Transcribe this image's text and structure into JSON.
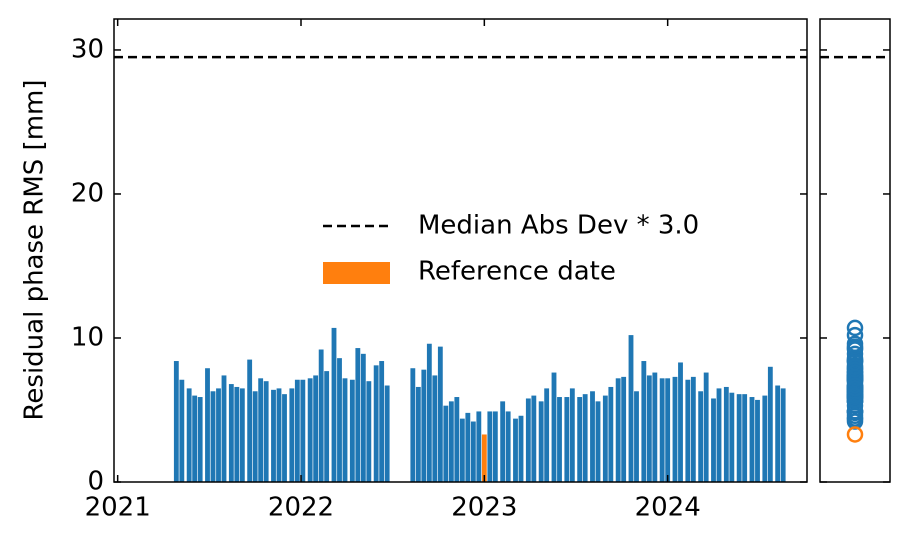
{
  "chart_data": {
    "type": "bar",
    "ylabel": "Residual phase RMS [mm]",
    "xlim": [
      2020.98,
      2024.76
    ],
    "xticks": [
      2021,
      2022,
      2023,
      2024
    ],
    "ylim": [
      0,
      32.15
    ],
    "yticks": [
      0,
      10,
      20,
      30
    ],
    "legend": "center",
    "bars": {
      "color": "#1f77b4",
      "x": [
        2021.32,
        2021.35,
        2021.39,
        2021.42,
        2021.45,
        2021.49,
        2021.52,
        2021.55,
        2021.58,
        2021.62,
        2021.65,
        2021.68,
        2021.72,
        2021.75,
        2021.78,
        2021.81,
        2021.85,
        2021.88,
        2021.91,
        2021.95,
        2021.98,
        2022.01,
        2022.05,
        2022.08,
        2022.11,
        2022.14,
        2022.18,
        2022.21,
        2022.24,
        2022.28,
        2022.31,
        2022.34,
        2022.37,
        2022.41,
        2022.44,
        2022.47,
        2022.61,
        2022.64,
        2022.67,
        2022.7,
        2022.73,
        2022.76,
        2022.79,
        2022.82,
        2022.85,
        2022.88,
        2022.91,
        2022.94,
        2022.97,
        2023.03,
        2023.06,
        2023.1,
        2023.13,
        2023.17,
        2023.2,
        2023.24,
        2023.27,
        2023.31,
        2023.34,
        2023.38,
        2023.41,
        2023.45,
        2023.48,
        2023.52,
        2023.55,
        2023.59,
        2023.62,
        2023.66,
        2023.69,
        2023.73,
        2023.76,
        2023.8,
        2023.83,
        2023.87,
        2023.9,
        2023.93,
        2023.97,
        2024.0,
        2024.04,
        2024.07,
        2024.11,
        2024.14,
        2024.18,
        2024.21,
        2024.25,
        2024.28,
        2024.32,
        2024.35,
        2024.39,
        2024.42,
        2024.46,
        2024.49,
        2024.53,
        2024.56,
        2024.6,
        2024.63
      ],
      "values": [
        8.4,
        7.1,
        6.5,
        6.0,
        5.9,
        7.9,
        6.3,
        6.5,
        7.4,
        6.8,
        6.6,
        6.5,
        8.5,
        6.3,
        7.2,
        7.0,
        6.4,
        6.5,
        6.1,
        6.5,
        7.1,
        7.1,
        7.2,
        7.4,
        9.2,
        7.7,
        10.7,
        8.6,
        7.2,
        7.1,
        9.3,
        8.9,
        7.0,
        8.1,
        8.4,
        6.7,
        7.9,
        6.6,
        7.8,
        9.6,
        7.4,
        9.4,
        5.3,
        5.6,
        5.9,
        4.4,
        4.8,
        4.2,
        4.9,
        4.9,
        4.9,
        5.6,
        4.9,
        4.4,
        4.6,
        5.8,
        6.0,
        5.6,
        6.5,
        7.6,
        5.9,
        5.9,
        6.5,
        5.9,
        6.1,
        6.3,
        5.6,
        6.0,
        6.6,
        7.2,
        7.3,
        10.2,
        6.3,
        8.4,
        7.4,
        7.6,
        7.2,
        7.2,
        7.3,
        8.3,
        7.1,
        7.3,
        6.3,
        7.6,
        5.8,
        6.5,
        6.6,
        6.2,
        6.1,
        6.1,
        5.9,
        5.7,
        6.0,
        8.0,
        6.7,
        6.5
      ]
    },
    "reference": {
      "name": "Reference date",
      "color": "#ff7f0e",
      "x": 2023.0,
      "value": 3.3
    },
    "threshold": {
      "name": "Median Abs Dev * 3.0",
      "color": "#000000",
      "value": 29.5
    }
  }
}
